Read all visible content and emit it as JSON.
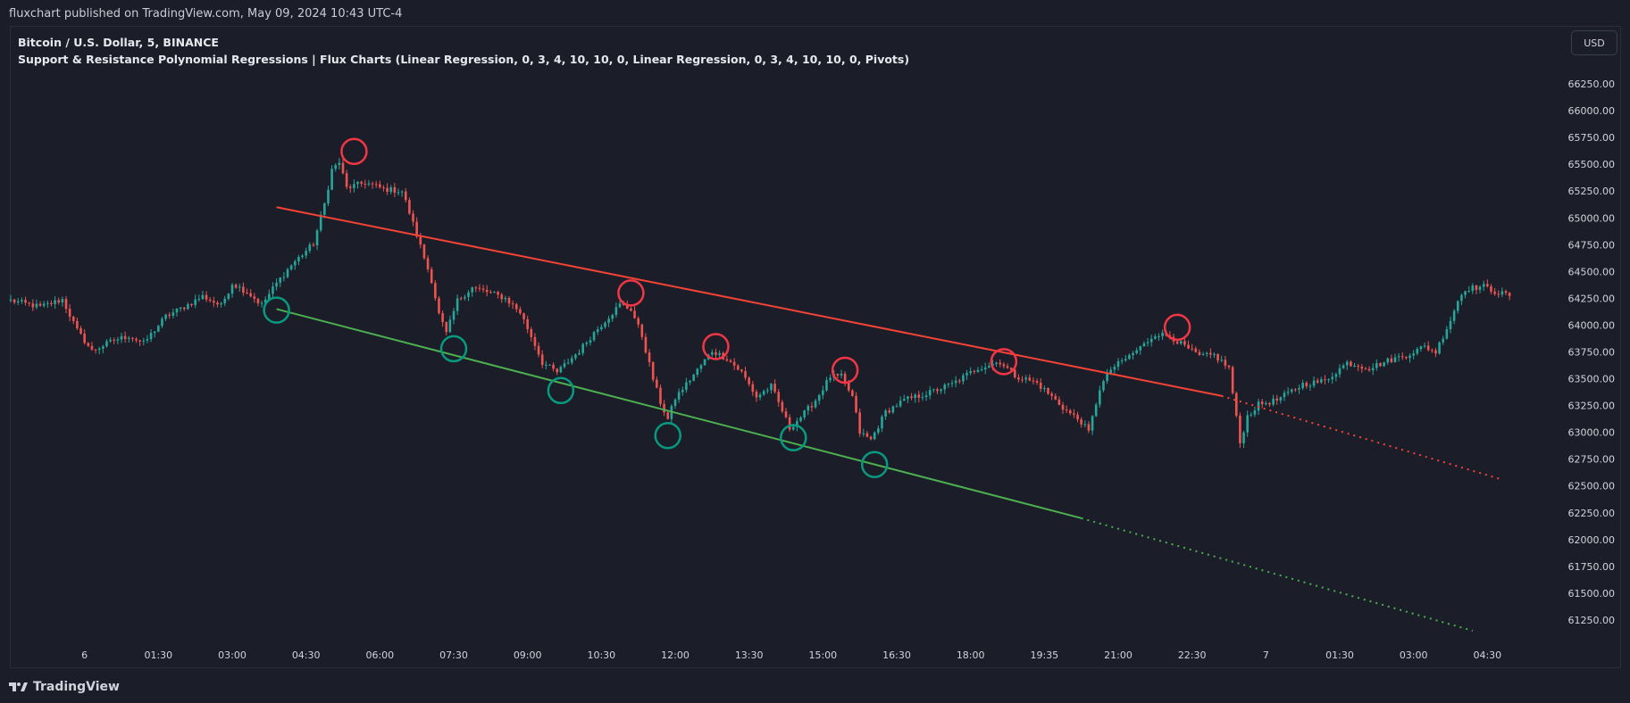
{
  "header": {
    "published_text": "fluxchart published on TradingView.com, May 09, 2024 10:43 UTC-4"
  },
  "legend": {
    "symbol_line": "Bitcoin / U.S. Dollar, 5, BINANCE",
    "indicator_line": "Support & Resistance Polynomial Regressions | Flux Charts (Linear Regression, 0, 3, 4, 10, 10, 0, Linear Regression, 0, 3, 4, 10, 10, 0, Pivots)"
  },
  "currency_button": {
    "label": "USD"
  },
  "footer": {
    "brand": "TradingView",
    "logo_icon": "tradingview-logo-icon"
  },
  "colors": {
    "background": "#1b1e29",
    "up_candle": "#26a69a",
    "down_candle": "#ef5350",
    "resistance": "#f44336",
    "support": "#4caf50",
    "pivot_high": "#f23645",
    "pivot_low": "#089981"
  },
  "chart_data": {
    "type": "candlestick",
    "symbol": "Bitcoin / U.S. Dollar",
    "interval": "5",
    "exchange": "BINANCE",
    "grid": false,
    "ylim": [
      61100,
      66550
    ],
    "y_ticks": [
      "61250.00",
      "61500.00",
      "61750.00",
      "62000.00",
      "62250.00",
      "62500.00",
      "62750.00",
      "63000.00",
      "63250.00",
      "63500.00",
      "63750.00",
      "64000.00",
      "64250.00",
      "64500.00",
      "64750.00",
      "65000.00",
      "65250.00",
      "65500.00",
      "65750.00",
      "66000.00",
      "66250.00"
    ],
    "x_ticks": [
      "6",
      "01:30",
      "03:00",
      "04:30",
      "06:00",
      "07:30",
      "09:00",
      "10:30",
      "12:00",
      "13:30",
      "15:00",
      "16:30",
      "18:00",
      "19:35",
      "21:00",
      "22:30",
      "7",
      "01:30",
      "03:00",
      "04:30"
    ],
    "x_tick_bar_index": [
      20,
      40,
      60,
      80,
      100,
      120,
      140,
      160,
      180,
      200,
      220,
      240,
      260,
      280,
      300,
      320,
      340,
      360,
      380,
      400
    ],
    "price_path": [
      [
        0,
        64230
      ],
      [
        8,
        64170
      ],
      [
        14,
        64240
      ],
      [
        18,
        63950
      ],
      [
        22,
        63760
      ],
      [
        28,
        63860
      ],
      [
        32,
        63900
      ],
      [
        36,
        63830
      ],
      [
        42,
        64080
      ],
      [
        48,
        64190
      ],
      [
        52,
        64270
      ],
      [
        57,
        64180
      ],
      [
        60,
        64390
      ],
      [
        64,
        64310
      ],
      [
        68,
        64190
      ],
      [
        72,
        64390
      ],
      [
        76,
        64560
      ],
      [
        82,
        64760
      ],
      [
        85,
        65130
      ],
      [
        87,
        65450
      ],
      [
        89,
        65520
      ],
      [
        91,
        65280
      ],
      [
        96,
        65330
      ],
      [
        101,
        65270
      ],
      [
        106,
        65250
      ],
      [
        108,
        65050
      ],
      [
        112,
        64630
      ],
      [
        114,
        64420
      ],
      [
        116,
        64100
      ],
      [
        118,
        63920
      ],
      [
        121,
        64230
      ],
      [
        125,
        64350
      ],
      [
        130,
        64300
      ],
      [
        134,
        64250
      ],
      [
        138,
        64120
      ],
      [
        142,
        63820
      ],
      [
        144,
        63650
      ],
      [
        148,
        63560
      ],
      [
        154,
        63760
      ],
      [
        158,
        63930
      ],
      [
        162,
        64080
      ],
      [
        165,
        64190
      ],
      [
        168,
        64150
      ],
      [
        171,
        63900
      ],
      [
        174,
        63500
      ],
      [
        176,
        63280
      ],
      [
        178,
        63120
      ],
      [
        180,
        63320
      ],
      [
        186,
        63580
      ],
      [
        190,
        63760
      ],
      [
        194,
        63690
      ],
      [
        198,
        63560
      ],
      [
        202,
        63330
      ],
      [
        206,
        63430
      ],
      [
        209,
        63200
      ],
      [
        211,
        63040
      ],
      [
        215,
        63180
      ],
      [
        218,
        63300
      ],
      [
        222,
        63520
      ],
      [
        225,
        63520
      ],
      [
        228,
        63330
      ],
      [
        230,
        63000
      ],
      [
        233,
        62930
      ],
      [
        237,
        63190
      ],
      [
        242,
        63300
      ],
      [
        248,
        63360
      ],
      [
        255,
        63450
      ],
      [
        262,
        63600
      ],
      [
        268,
        63660
      ],
      [
        272,
        63530
      ],
      [
        278,
        63460
      ],
      [
        283,
        63300
      ],
      [
        286,
        63200
      ],
      [
        290,
        63100
      ],
      [
        292,
        63000
      ],
      [
        295,
        63410
      ],
      [
        298,
        63590
      ],
      [
        303,
        63710
      ],
      [
        307,
        63820
      ],
      [
        310,
        63920
      ],
      [
        314,
        63900
      ],
      [
        318,
        63800
      ],
      [
        322,
        63710
      ],
      [
        326,
        63720
      ],
      [
        330,
        63600
      ],
      [
        333,
        62900
      ],
      [
        335,
        63150
      ],
      [
        338,
        63260
      ],
      [
        343,
        63300
      ],
      [
        350,
        63450
      ],
      [
        356,
        63480
      ],
      [
        362,
        63650
      ],
      [
        368,
        63600
      ],
      [
        374,
        63680
      ],
      [
        378,
        63720
      ],
      [
        383,
        63800
      ],
      [
        386,
        63750
      ],
      [
        390,
        64050
      ],
      [
        392,
        64230
      ],
      [
        394,
        64340
      ],
      [
        399,
        64360
      ],
      [
        403,
        64300
      ],
      [
        406,
        64280
      ]
    ],
    "bar_count": 407,
    "regression_lines": [
      {
        "role": "resistance",
        "solid": [
          [
            72,
            65100
          ],
          [
            328,
            63340
          ]
        ],
        "dotted_to": [
          404,
          62560
        ]
      },
      {
        "role": "support",
        "solid": [
          [
            72,
            64150
          ],
          [
            290,
            62200
          ]
        ],
        "dotted_to": [
          396,
          61150
        ]
      }
    ],
    "pivot_highs": [
      {
        "bar": 93,
        "price": 65620
      },
      {
        "bar": 168,
        "price": 64300
      },
      {
        "bar": 191,
        "price": 63800
      },
      {
        "bar": 226,
        "price": 63580
      },
      {
        "bar": 269,
        "price": 63660
      },
      {
        "bar": 316,
        "price": 63980
      }
    ],
    "pivot_lows": [
      {
        "bar": 72,
        "price": 64140
      },
      {
        "bar": 120,
        "price": 63780
      },
      {
        "bar": 149,
        "price": 63390
      },
      {
        "bar": 178,
        "price": 62970
      },
      {
        "bar": 212,
        "price": 62950
      },
      {
        "bar": 234,
        "price": 62700
      }
    ]
  }
}
